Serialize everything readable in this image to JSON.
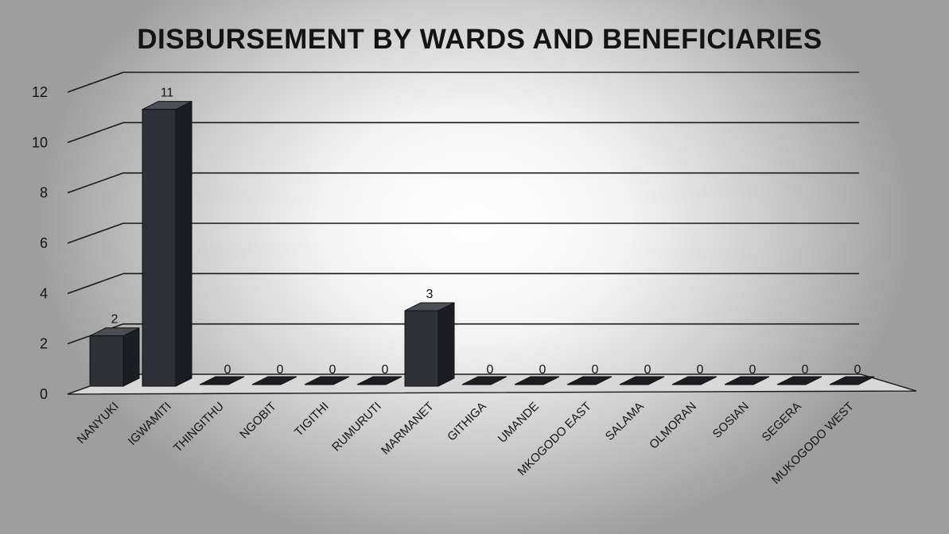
{
  "chart_data": {
    "type": "bar",
    "title": "DISBURSEMENT BY WARDS AND BENEFICIARIES",
    "xlabel": "",
    "ylabel": "",
    "ylim": [
      0,
      12
    ],
    "yticks": [
      0,
      2,
      4,
      6,
      8,
      10,
      12
    ],
    "grid": true,
    "legend": "none",
    "bar_color": "#2e3138",
    "categories": [
      "NANYUKI",
      "IGWAMITI",
      "THINGITHU",
      "NGOBIT",
      "TIGITHI",
      "RUMURUTI",
      "MARMANET",
      "GITHIGA",
      "UMANDE",
      "MKOGODO EAST",
      "SALAMA",
      "OLMORAN",
      "SOSIAN",
      "SEGERA",
      "MUKOGODO WEST"
    ],
    "values": [
      2,
      11,
      0,
      0,
      0,
      0,
      3,
      0,
      0,
      0,
      0,
      0,
      0,
      0,
      0
    ]
  }
}
